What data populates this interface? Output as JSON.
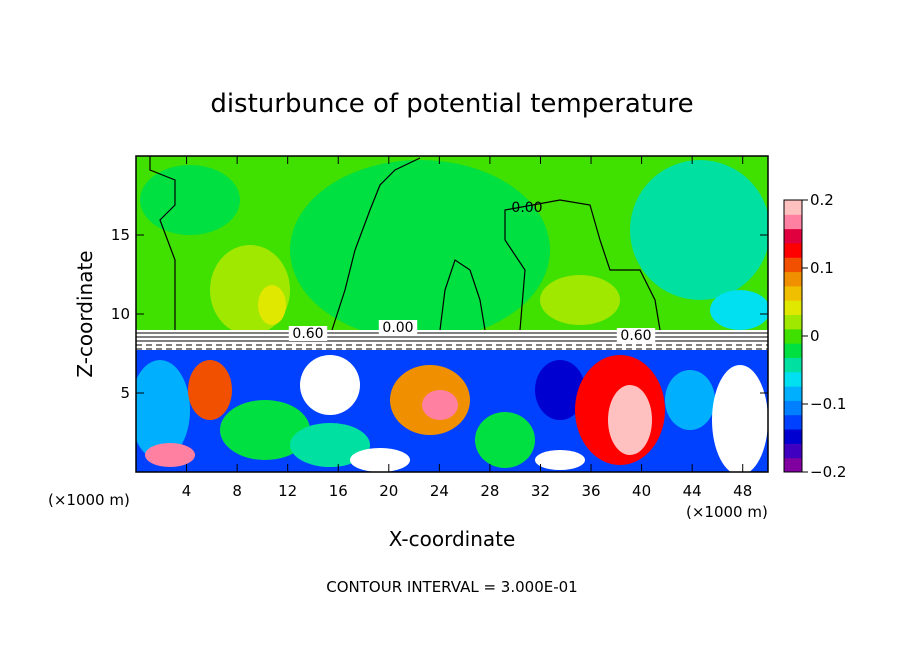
{
  "chart_data": {
    "type": "heatmap",
    "title": "disturbunce of potential temperature",
    "xlabel": "X-coordinate",
    "ylabel": "Z-coordinate",
    "x_unit_label": "(×1000 m)",
    "footer": "CONTOUR INTERVAL = 3.000E-01",
    "xlim": [
      0,
      50
    ],
    "ylim": [
      0,
      20
    ],
    "x_ticks": [
      4,
      8,
      12,
      16,
      20,
      24,
      28,
      32,
      36,
      40,
      44,
      48
    ],
    "y_ticks": [
      5,
      10,
      15
    ],
    "contour_labels": [
      "0.00",
      "0.60",
      "0.00",
      "0.60"
    ],
    "colorbar": {
      "ticks": [
        {
          "value": 0.2,
          "label": "0.2"
        },
        {
          "value": 0.1,
          "label": "0.1"
        },
        {
          "value": 0.0,
          "label": "0"
        },
        {
          "value": -0.1,
          "label": "−0.1"
        },
        {
          "value": -0.2,
          "label": "−0.2"
        }
      ],
      "range": [
        -0.2,
        0.2
      ],
      "colors": [
        "#8000a0",
        "#4000c0",
        "#0000d0",
        "#0040ff",
        "#0080ff",
        "#00b0ff",
        "#00e0f0",
        "#00e0a0",
        "#00e040",
        "#40e000",
        "#a0e800",
        "#e0e800",
        "#f0c000",
        "#f09000",
        "#f05000",
        "#ff0000",
        "#e00040",
        "#ff80a0",
        "#ffc0c0"
      ]
    }
  }
}
